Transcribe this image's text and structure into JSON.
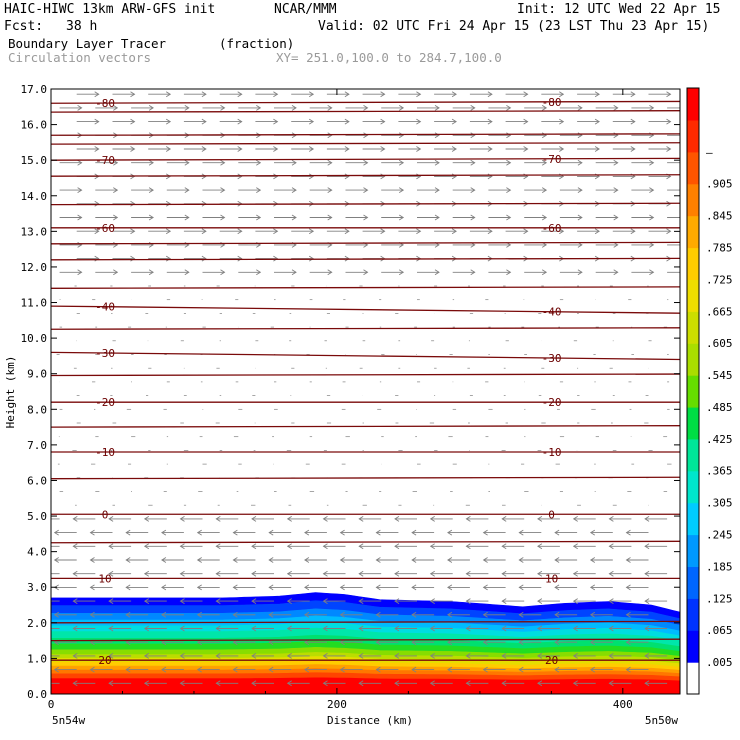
{
  "header": {
    "model": "HAIC-HIWC 13km ARW-GFS init",
    "org": "NCAR/MMM",
    "init": "Init: 12 UTC Wed 22 Apr 15",
    "fcst_label": "Fcst:",
    "fcst_value": "38 h",
    "valid": "Valid: 02 UTC Fri 24 Apr 15 (23 LST Thu 23 Apr 15)",
    "field": "Boundary Layer Tracer",
    "units": "(fraction)",
    "vectors": "Circulation vectors",
    "xy": "XY= 251.0,100.0 to 284.7,100.0"
  },
  "chart_data": {
    "type": "heatmap",
    "title": "Boundary Layer Tracer",
    "units": "(fraction)",
    "xlabel": "Distance (km)",
    "ylabel": "Height (km)",
    "xlim": [
      0,
      440
    ],
    "ylim": [
      0,
      17
    ],
    "x_ticks": [
      "0",
      "200",
      "400"
    ],
    "y_ticks": [
      "0.0",
      "1.0",
      "2.0",
      "3.0",
      "4.0",
      "5.0",
      "6.0",
      "7.0",
      "8.0",
      "9.0",
      "10.0",
      "11.0",
      "12.0",
      "13.0",
      "14.0",
      "15.0",
      "16.0",
      "17.0"
    ],
    "x_endpoints": {
      "left": "5n54w",
      "right": "5n50w"
    },
    "colorbar": {
      "labels": [
        ".005",
        ".065",
        ".125",
        ".185",
        ".245",
        ".305",
        ".365",
        ".425",
        ".485",
        ".545",
        ".605",
        ".665",
        ".725",
        ".785",
        ".845",
        ".905",
        "–"
      ],
      "colors": [
        "#ffffff",
        "#0000ff",
        "#0033ff",
        "#0066ff",
        "#0099ff",
        "#00ccff",
        "#00e6cc",
        "#00e699",
        "#00dd44",
        "#66dd00",
        "#aadd00",
        "#ccdd00",
        "#eedd00",
        "#ffcc00",
        "#ffaa00",
        "#ff8000",
        "#ff5500",
        "#ff2a00",
        "#ff0000"
      ]
    },
    "tracer_top_km": [
      [
        0,
        2.7
      ],
      [
        60,
        2.7
      ],
      [
        120,
        2.7
      ],
      [
        160,
        2.75
      ],
      [
        185,
        2.85
      ],
      [
        205,
        2.8
      ],
      [
        230,
        2.65
      ],
      [
        280,
        2.6
      ],
      [
        330,
        2.45
      ],
      [
        360,
        2.55
      ],
      [
        390,
        2.6
      ],
      [
        420,
        2.5
      ],
      [
        440,
        2.3
      ]
    ],
    "temperature_contours_C": [
      {
        "value": -80,
        "label": "-80",
        "heights_km": [
          16.6,
          16.65
        ]
      },
      {
        "value": -70,
        "label": "-70",
        "heights_km": [
          15.0,
          15.05
        ]
      },
      {
        "value": -60,
        "label": "-60",
        "heights_km": [
          13.1,
          13.1
        ]
      },
      {
        "value": -40,
        "label": "-40",
        "heights_km": [
          10.9,
          10.7
        ]
      },
      {
        "value": -30,
        "label": "-30",
        "heights_km": [
          9.6,
          9.4
        ]
      },
      {
        "value": -20,
        "label": "-20",
        "heights_km": [
          8.2,
          8.2
        ]
      },
      {
        "value": -10,
        "label": "-10",
        "heights_km": [
          6.8,
          6.8
        ]
      },
      {
        "value": 0,
        "label": "0",
        "heights_km": [
          5.05,
          5.05
        ]
      },
      {
        "value": 10,
        "label": "10",
        "heights_km": [
          3.25,
          3.25
        ]
      },
      {
        "value": 20,
        "label": "20",
        "heights_km": [
          0.95,
          0.95
        ]
      }
    ],
    "unlabeled_contour_heights_km": [
      16.35,
      15.7,
      15.45,
      14.55,
      13.75,
      12.65,
      12.2,
      11.4,
      10.25,
      8.95,
      7.5,
      6.05,
      4.25,
      2.0,
      1.5
    ]
  }
}
